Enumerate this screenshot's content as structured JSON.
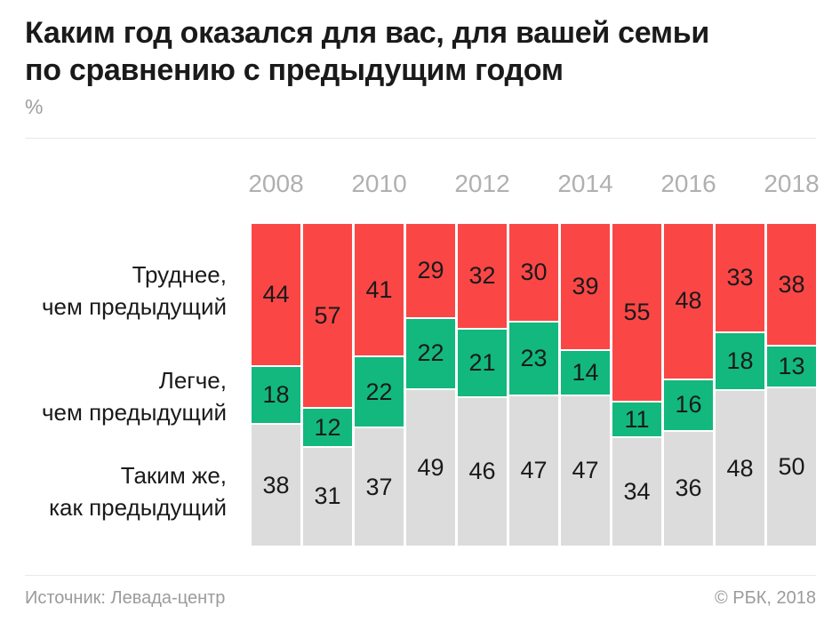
{
  "header": {
    "title_line1": "Каким год оказался для вас, для вашей семьи",
    "title_line2": "по сравнению с предыдущим годом",
    "unit": "%"
  },
  "chart_data": {
    "type": "bar",
    "stacked": true,
    "normalized_to_100": true,
    "anchor": "top",
    "title": "Каким год оказался для вас, для вашей семьи по сравнению с предыдущим годом",
    "ylabel": "%",
    "ylim": [
      0,
      100
    ],
    "grid": false,
    "legend_position": "left-row-labels",
    "x": [
      "2008",
      "2009",
      "2010",
      "2011",
      "2012",
      "2013",
      "2014",
      "2015",
      "2016",
      "2017",
      "2018"
    ],
    "x_tick_labels": [
      "2008",
      "2010",
      "2012",
      "2014",
      "2016",
      "2018"
    ],
    "x_tick_bar_indexes": [
      0,
      2,
      4,
      6,
      8,
      10
    ],
    "series": [
      {
        "name": "Труднее,\nчем предыдущий",
        "color": "#FB4646",
        "values": [
          44,
          57,
          41,
          29,
          32,
          30,
          39,
          55,
          48,
          33,
          38
        ]
      },
      {
        "name": "Легче,\nчем предыдущий",
        "color": "#12B87E",
        "values": [
          18,
          12,
          22,
          22,
          21,
          23,
          14,
          11,
          16,
          18,
          13
        ]
      },
      {
        "name": "Таким же,\nкак предыдущий",
        "color": "#DCDCDC",
        "values": [
          38,
          31,
          37,
          49,
          46,
          47,
          47,
          34,
          36,
          48,
          50
        ]
      }
    ],
    "value_labels_shown": true
  },
  "footer": {
    "source": "Источник: Левада-центр",
    "copyright": "© РБК, 2018"
  },
  "colors": {
    "harder": "#FB4646",
    "easier": "#12B87E",
    "same": "#DCDCDC",
    "title_text": "#1A1A1A",
    "year_tick": "#B0B0B0",
    "muted_text": "#9B9B9B",
    "divider": "#E8E8E8",
    "background": "#FFFFFF"
  }
}
